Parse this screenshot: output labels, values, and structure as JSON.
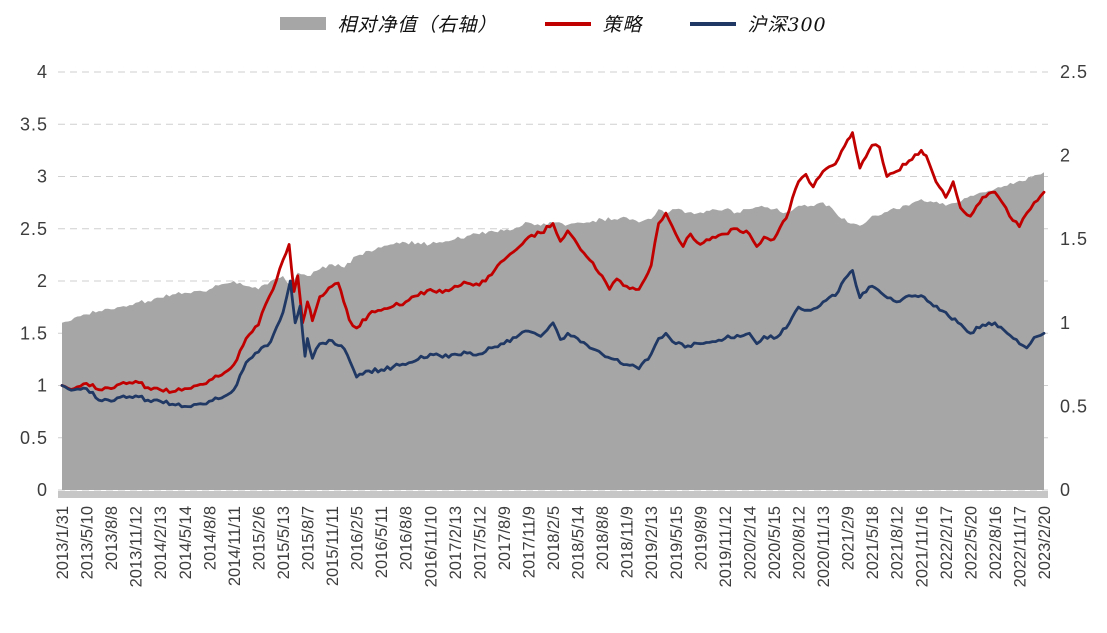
{
  "chart_data": {
    "type": "line",
    "background": "#FFFFFF",
    "grid": "horizontal-dashed",
    "legend_position": "top-center",
    "legend": [
      {
        "name": "相对净值（右轴）",
        "color": "#A6A6A6",
        "style": "area",
        "axis": "right"
      },
      {
        "name": "策略",
        "color": "#C00000",
        "style": "line",
        "axis": "left"
      },
      {
        "name": "沪深300",
        "color": "#1F3864",
        "style": "line",
        "axis": "left"
      }
    ],
    "left_axis": {
      "min": 0,
      "max": 4,
      "ticks": [
        "0",
        "0.5",
        "1",
        "1.5",
        "2",
        "2.5",
        "3",
        "3.5",
        "4"
      ]
    },
    "right_axis": {
      "min": 0,
      "max": 2.5,
      "ticks": [
        "0",
        "0.5",
        "1",
        "1.5",
        "2",
        "2.5"
      ]
    },
    "x_tick_labels": [
      "2013/1/31",
      "2013/5/10",
      "2013/8/8",
      "2013/11/12",
      "2014/2/13",
      "2014/5/14",
      "2014/8/8",
      "2014/11/11",
      "2015/2/6",
      "2015/5/13",
      "2015/8/7",
      "2015/11/11",
      "2016/2/5",
      "2016/5/11",
      "2016/8/8",
      "2016/11/10",
      "2017/2/13",
      "2017/5/12",
      "2017/8/9",
      "2017/11/9",
      "2018/2/5",
      "2018/5/14",
      "2018/8/8",
      "2018/11/9",
      "2019/2/13",
      "2019/5/15",
      "2019/8/9",
      "2019/11/12",
      "2020/2/14",
      "2020/5/15",
      "2020/8/12",
      "2020/11/13",
      "2021/2/9",
      "2021/5/18",
      "2021/8/12",
      "2021/11/16",
      "2022/2/17",
      "2022/5/20",
      "2022/8/16",
      "2022/11/17",
      "2023/2/20"
    ],
    "series": [
      {
        "id": "relative-nav-area",
        "name": "相对净值（右轴）",
        "axis": "right",
        "style": "area",
        "color": "#A6A6A6",
        "points": [
          [
            0,
            1.0
          ],
          [
            0.5,
            1.03
          ],
          [
            1,
            1.05
          ],
          [
            1.5,
            1.07
          ],
          [
            2,
            1.08
          ],
          [
            2.5,
            1.1
          ],
          [
            3,
            1.12
          ],
          [
            3.5,
            1.13
          ],
          [
            4,
            1.15
          ],
          [
            4.5,
            1.17
          ],
          [
            5,
            1.18
          ],
          [
            5.5,
            1.19
          ],
          [
            6,
            1.2
          ],
          [
            6.5,
            1.23
          ],
          [
            7,
            1.25
          ],
          [
            7.5,
            1.22
          ],
          [
            8,
            1.2
          ],
          [
            8.5,
            1.25
          ],
          [
            9,
            1.28
          ],
          [
            9.3,
            1.22
          ],
          [
            9.6,
            1.3
          ],
          [
            10,
            1.28
          ],
          [
            10.5,
            1.32
          ],
          [
            11,
            1.35
          ],
          [
            11.5,
            1.33
          ],
          [
            12,
            1.4
          ],
          [
            12.5,
            1.43
          ],
          [
            13,
            1.45
          ],
          [
            13.5,
            1.47
          ],
          [
            14,
            1.48
          ],
          [
            14.5,
            1.48
          ],
          [
            15,
            1.47
          ],
          [
            15.5,
            1.48
          ],
          [
            16,
            1.5
          ],
          [
            16.5,
            1.52
          ],
          [
            17,
            1.53
          ],
          [
            17.5,
            1.55
          ],
          [
            18,
            1.55
          ],
          [
            18.5,
            1.57
          ],
          [
            19,
            1.6
          ],
          [
            19.5,
            1.58
          ],
          [
            20,
            1.6
          ],
          [
            20.5,
            1.58
          ],
          [
            21,
            1.6
          ],
          [
            21.5,
            1.6
          ],
          [
            22,
            1.62
          ],
          [
            22.5,
            1.62
          ],
          [
            23,
            1.63
          ],
          [
            23.5,
            1.6
          ],
          [
            24,
            1.62
          ],
          [
            24.3,
            1.68
          ],
          [
            24.6,
            1.65
          ],
          [
            25,
            1.68
          ],
          [
            25.5,
            1.66
          ],
          [
            26,
            1.66
          ],
          [
            26.5,
            1.68
          ],
          [
            27,
            1.68
          ],
          [
            27.5,
            1.66
          ],
          [
            28,
            1.68
          ],
          [
            28.5,
            1.7
          ],
          [
            29,
            1.68
          ],
          [
            29.5,
            1.66
          ],
          [
            30,
            1.7
          ],
          [
            30.5,
            1.7
          ],
          [
            31,
            1.72
          ],
          [
            31.5,
            1.66
          ],
          [
            32,
            1.6
          ],
          [
            32.5,
            1.58
          ],
          [
            33,
            1.64
          ],
          [
            33.5,
            1.66
          ],
          [
            34,
            1.68
          ],
          [
            34.5,
            1.7
          ],
          [
            35,
            1.74
          ],
          [
            35.5,
            1.72
          ],
          [
            36,
            1.7
          ],
          [
            36.5,
            1.72
          ],
          [
            37,
            1.76
          ],
          [
            37.5,
            1.78
          ],
          [
            38,
            1.8
          ],
          [
            38.5,
            1.82
          ],
          [
            39,
            1.85
          ],
          [
            39.5,
            1.87
          ],
          [
            40,
            1.9
          ]
        ]
      },
      {
        "id": "strategy-line",
        "name": "策略",
        "axis": "left",
        "style": "line",
        "color": "#C00000",
        "points": [
          [
            0,
            1.0
          ],
          [
            0.5,
            0.97
          ],
          [
            1,
            1.02
          ],
          [
            1.5,
            0.96
          ],
          [
            2,
            0.97
          ],
          [
            2.5,
            1.03
          ],
          [
            3,
            1.04
          ],
          [
            3.5,
            0.98
          ],
          [
            4,
            0.96
          ],
          [
            4.5,
            0.94
          ],
          [
            5,
            0.97
          ],
          [
            5.5,
            1.0
          ],
          [
            6,
            1.05
          ],
          [
            6.5,
            1.1
          ],
          [
            7,
            1.2
          ],
          [
            7.5,
            1.45
          ],
          [
            8,
            1.58
          ],
          [
            8.3,
            1.78
          ],
          [
            8.6,
            1.92
          ],
          [
            9,
            2.2
          ],
          [
            9.25,
            2.35
          ],
          [
            9.45,
            1.9
          ],
          [
            9.6,
            2.05
          ],
          [
            9.8,
            1.6
          ],
          [
            10,
            1.8
          ],
          [
            10.2,
            1.62
          ],
          [
            10.5,
            1.85
          ],
          [
            11,
            1.95
          ],
          [
            11.25,
            1.98
          ],
          [
            11.7,
            1.63
          ],
          [
            12,
            1.55
          ],
          [
            12.5,
            1.68
          ],
          [
            13,
            1.72
          ],
          [
            13.5,
            1.76
          ],
          [
            14,
            1.8
          ],
          [
            14.5,
            1.86
          ],
          [
            15,
            1.92
          ],
          [
            15.5,
            1.89
          ],
          [
            16,
            1.95
          ],
          [
            16.5,
            1.98
          ],
          [
            17,
            1.96
          ],
          [
            17.5,
            2.06
          ],
          [
            18,
            2.2
          ],
          [
            18.5,
            2.3
          ],
          [
            19,
            2.42
          ],
          [
            19.5,
            2.46
          ],
          [
            20,
            2.55
          ],
          [
            20.3,
            2.38
          ],
          [
            20.6,
            2.48
          ],
          [
            21,
            2.35
          ],
          [
            21.5,
            2.2
          ],
          [
            22,
            2.05
          ],
          [
            22.3,
            1.92
          ],
          [
            22.6,
            2.02
          ],
          [
            23,
            1.95
          ],
          [
            23.5,
            1.92
          ],
          [
            24,
            2.15
          ],
          [
            24.3,
            2.55
          ],
          [
            24.6,
            2.65
          ],
          [
            25,
            2.45
          ],
          [
            25.3,
            2.33
          ],
          [
            25.6,
            2.45
          ],
          [
            26,
            2.35
          ],
          [
            26.5,
            2.42
          ],
          [
            27,
            2.45
          ],
          [
            27.5,
            2.5
          ],
          [
            28,
            2.45
          ],
          [
            28.3,
            2.33
          ],
          [
            28.6,
            2.42
          ],
          [
            29,
            2.4
          ],
          [
            29.5,
            2.6
          ],
          [
            30,
            2.95
          ],
          [
            30.3,
            3.02
          ],
          [
            30.6,
            2.9
          ],
          [
            31,
            3.05
          ],
          [
            31.5,
            3.12
          ],
          [
            32,
            3.35
          ],
          [
            32.2,
            3.42
          ],
          [
            32.5,
            3.08
          ],
          [
            33,
            3.3
          ],
          [
            33.3,
            3.28
          ],
          [
            33.6,
            3.0
          ],
          [
            34,
            3.05
          ],
          [
            34.5,
            3.15
          ],
          [
            35,
            3.25
          ],
          [
            35.2,
            3.2
          ],
          [
            35.6,
            2.95
          ],
          [
            36,
            2.8
          ],
          [
            36.3,
            2.95
          ],
          [
            36.6,
            2.7
          ],
          [
            37,
            2.62
          ],
          [
            37.5,
            2.8
          ],
          [
            38,
            2.85
          ],
          [
            38.3,
            2.75
          ],
          [
            38.6,
            2.62
          ],
          [
            39,
            2.52
          ],
          [
            39.3,
            2.65
          ],
          [
            39.6,
            2.75
          ],
          [
            40,
            2.85
          ]
        ]
      },
      {
        "id": "csi300-line",
        "name": "沪深300",
        "axis": "left",
        "style": "line",
        "color": "#1F3864",
        "points": [
          [
            0,
            1.0
          ],
          [
            0.5,
            0.96
          ],
          [
            1,
            0.97
          ],
          [
            1.5,
            0.86
          ],
          [
            2,
            0.85
          ],
          [
            2.5,
            0.9
          ],
          [
            3,
            0.9
          ],
          [
            3.5,
            0.86
          ],
          [
            4,
            0.85
          ],
          [
            4.5,
            0.82
          ],
          [
            5,
            0.8
          ],
          [
            5.5,
            0.82
          ],
          [
            6,
            0.85
          ],
          [
            6.5,
            0.88
          ],
          [
            7,
            0.96
          ],
          [
            7.5,
            1.22
          ],
          [
            8,
            1.32
          ],
          [
            8.5,
            1.42
          ],
          [
            9,
            1.7
          ],
          [
            9.3,
            2.0
          ],
          [
            9.5,
            1.6
          ],
          [
            9.7,
            1.76
          ],
          [
            9.9,
            1.28
          ],
          [
            10,
            1.45
          ],
          [
            10.2,
            1.26
          ],
          [
            10.5,
            1.4
          ],
          [
            11,
            1.43
          ],
          [
            11.5,
            1.35
          ],
          [
            12,
            1.08
          ],
          [
            12.5,
            1.14
          ],
          [
            13,
            1.15
          ],
          [
            13.5,
            1.18
          ],
          [
            14,
            1.2
          ],
          [
            14.5,
            1.25
          ],
          [
            15,
            1.3
          ],
          [
            15.5,
            1.27
          ],
          [
            16,
            1.3
          ],
          [
            16.5,
            1.31
          ],
          [
            17,
            1.3
          ],
          [
            17.5,
            1.36
          ],
          [
            18,
            1.4
          ],
          [
            18.5,
            1.46
          ],
          [
            19,
            1.52
          ],
          [
            19.5,
            1.47
          ],
          [
            20,
            1.6
          ],
          [
            20.3,
            1.44
          ],
          [
            20.6,
            1.5
          ],
          [
            21,
            1.45
          ],
          [
            21.5,
            1.36
          ],
          [
            22,
            1.3
          ],
          [
            22.5,
            1.25
          ],
          [
            23,
            1.2
          ],
          [
            23.5,
            1.16
          ],
          [
            24,
            1.3
          ],
          [
            24.3,
            1.45
          ],
          [
            24.6,
            1.5
          ],
          [
            25,
            1.4
          ],
          [
            25.5,
            1.38
          ],
          [
            26,
            1.4
          ],
          [
            26.5,
            1.42
          ],
          [
            27,
            1.45
          ],
          [
            27.5,
            1.48
          ],
          [
            28,
            1.5
          ],
          [
            28.3,
            1.4
          ],
          [
            28.6,
            1.47
          ],
          [
            29,
            1.45
          ],
          [
            29.5,
            1.55
          ],
          [
            30,
            1.75
          ],
          [
            30.5,
            1.72
          ],
          [
            31,
            1.8
          ],
          [
            31.5,
            1.86
          ],
          [
            32,
            2.05
          ],
          [
            32.2,
            2.1
          ],
          [
            32.5,
            1.84
          ],
          [
            33,
            1.95
          ],
          [
            33.5,
            1.86
          ],
          [
            34,
            1.8
          ],
          [
            34.5,
            1.86
          ],
          [
            35,
            1.86
          ],
          [
            35.5,
            1.76
          ],
          [
            36,
            1.7
          ],
          [
            36.5,
            1.6
          ],
          [
            37,
            1.5
          ],
          [
            37.5,
            1.58
          ],
          [
            38,
            1.6
          ],
          [
            38.5,
            1.5
          ],
          [
            39,
            1.4
          ],
          [
            39.3,
            1.36
          ],
          [
            39.6,
            1.46
          ],
          [
            40,
            1.5
          ]
        ]
      }
    ],
    "style_hints": {
      "gridline_color": "#CFCFCF",
      "axis_label_color": "#3D3D3D",
      "baseline_band_color": "#C6C6C6"
    }
  }
}
